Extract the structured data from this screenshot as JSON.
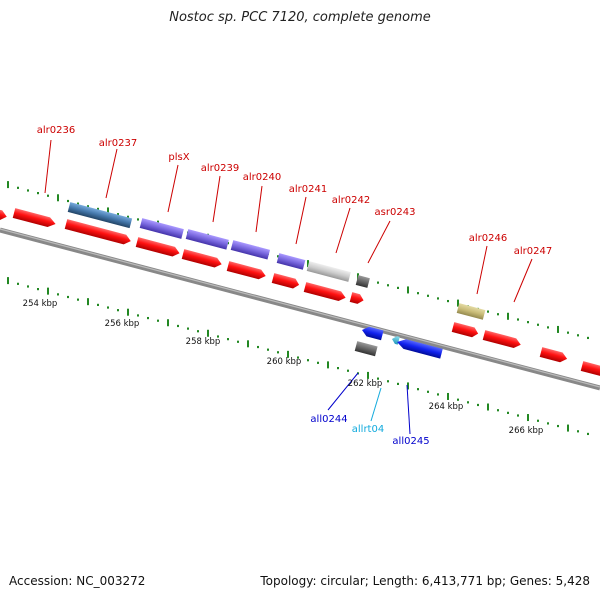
{
  "title": "Nostoc sp. PCC 7120, complete genome",
  "footer": {
    "accession": "Accession: NC_003272",
    "summary": "Topology: circular; Length: 6,413,771 bp; Genes: 5,428"
  },
  "colors": {
    "forward_gene": "#ff1111",
    "reverse_gene": "#1122ee",
    "rna_gene": "#33bbdd",
    "purple_gene": "#7766dd",
    "steel_gene": "#4477aa",
    "gray_gene": "#cccccc",
    "dark_gene": "#666666",
    "khaki_gene": "#c8bb77",
    "axis": "#888888",
    "scale_dots": "#228822"
  },
  "scale_labels": [
    "254 kbp",
    "256 kbp",
    "258 kbp",
    "260 kbp",
    "262 kbp",
    "264 kbp",
    "266 kbp"
  ],
  "gene_labels": [
    {
      "text": "alr0236",
      "strand": "forward"
    },
    {
      "text": "alr0237",
      "strand": "forward"
    },
    {
      "text": "plsX",
      "strand": "forward"
    },
    {
      "text": "alr0239",
      "strand": "forward"
    },
    {
      "text": "alr0240",
      "strand": "forward"
    },
    {
      "text": "alr0241",
      "strand": "forward"
    },
    {
      "text": "alr0242",
      "strand": "forward"
    },
    {
      "text": "asr0243",
      "strand": "forward"
    },
    {
      "text": "alr0246",
      "strand": "forward"
    },
    {
      "text": "alr0247",
      "strand": "forward"
    },
    {
      "text": "all0244",
      "strand": "reverse"
    },
    {
      "text": "allrt04",
      "strand": "rna"
    },
    {
      "text": "all0245",
      "strand": "reverse"
    }
  ]
}
